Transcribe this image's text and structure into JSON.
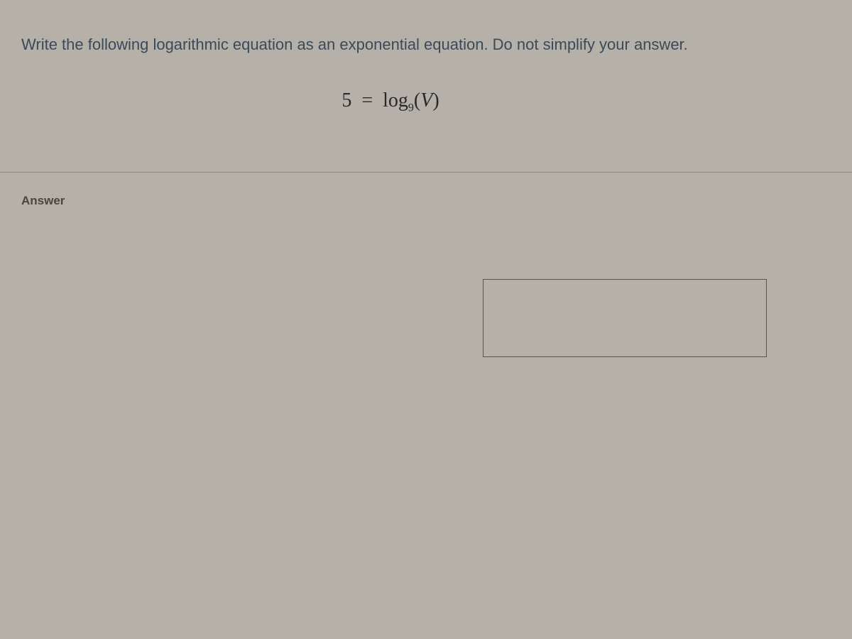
{
  "question": {
    "prompt": "Write the following logarithmic equation as an exponential equation. Do not simplify your answer.",
    "equation": {
      "left_value": "5",
      "equals": "=",
      "log_text": "log",
      "log_base": "9",
      "log_arg_open": "(",
      "log_arg_var": "V",
      "log_arg_close": ")"
    }
  },
  "answer": {
    "label": "Answer",
    "input_value": ""
  },
  "styling": {
    "background_color": "#b5b0a8",
    "question_text_color": "#3a4a5a",
    "question_fontsize": 22,
    "equation_color": "#2a2a2a",
    "equation_fontsize": 28,
    "equation_font_family": "Times New Roman",
    "answer_label_color": "#4a4540",
    "answer_label_fontsize": 17,
    "divider_color": "#8a857d",
    "input_border_color": "#5a5550",
    "input_width": 400,
    "input_height": 110
  }
}
